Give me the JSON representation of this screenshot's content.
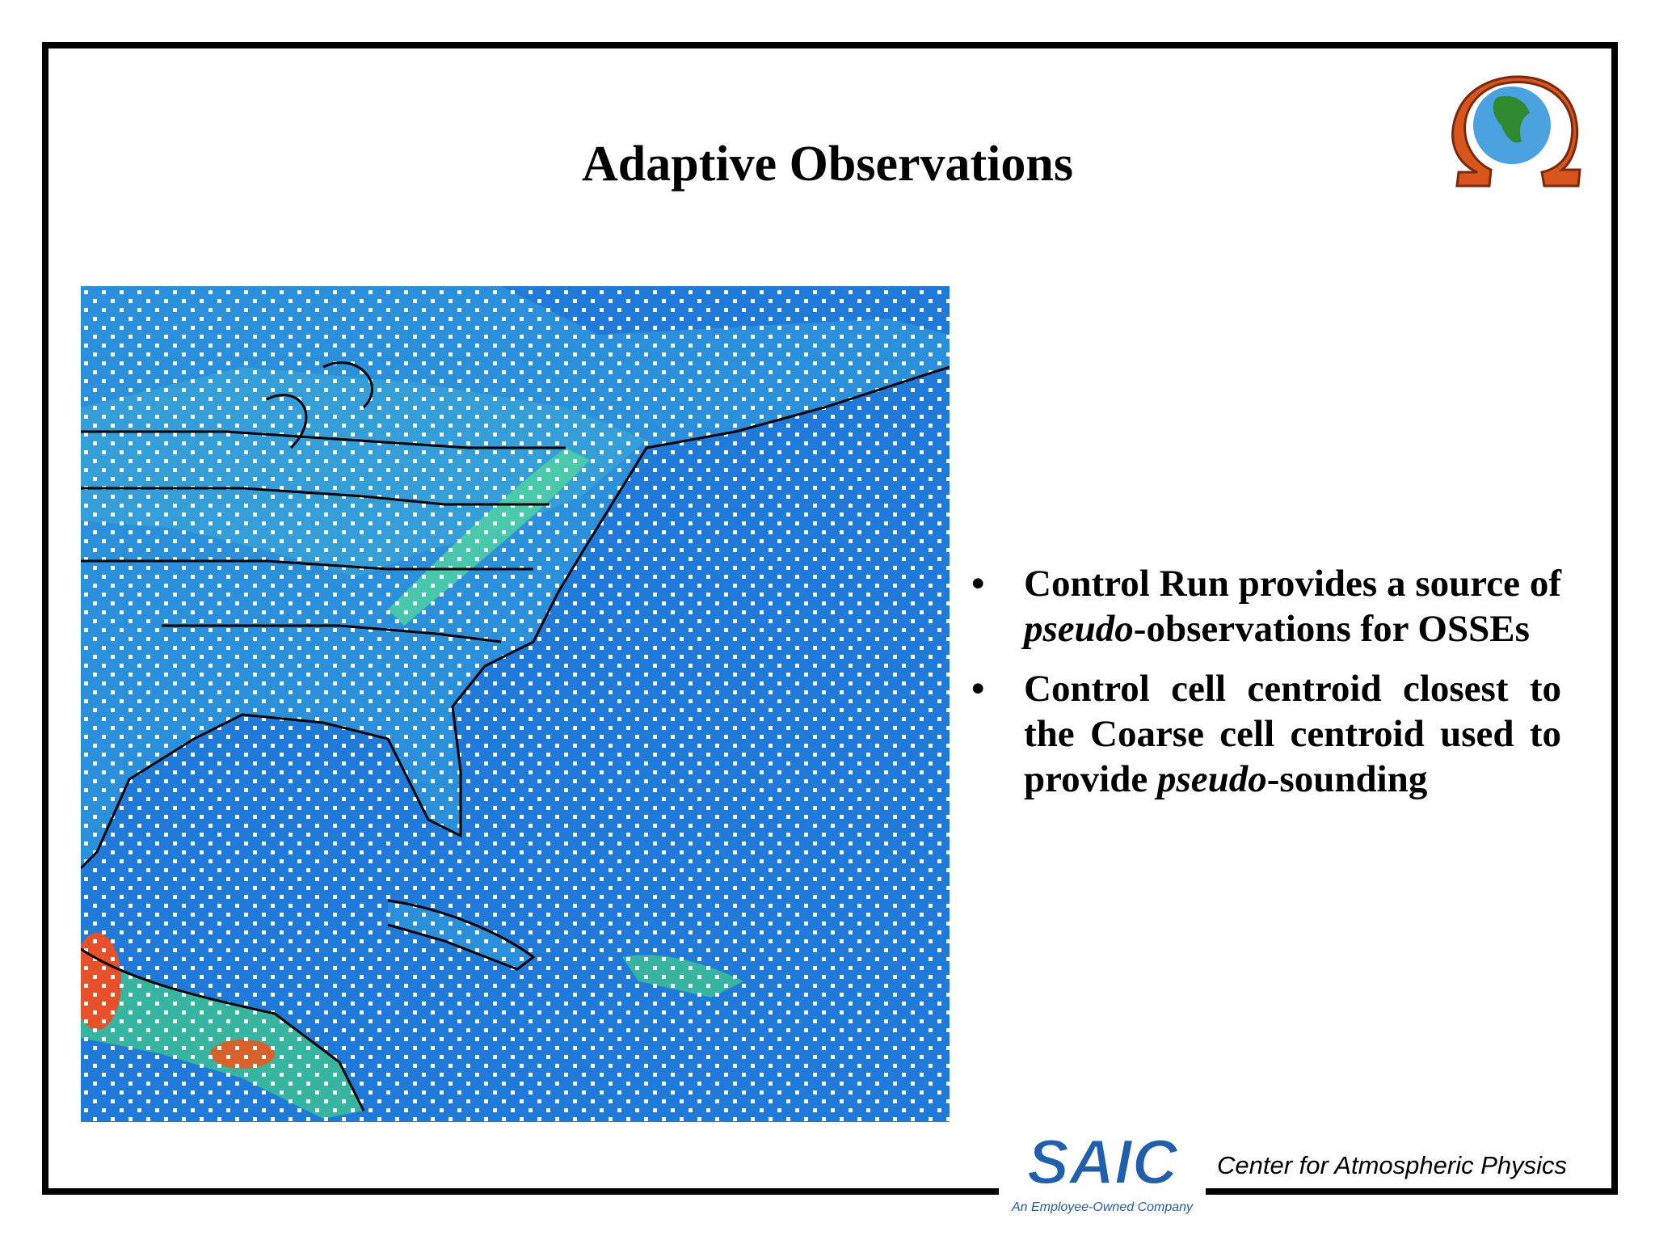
{
  "header": {
    "title": "Adaptive Observations"
  },
  "bullets": [
    [
      "Control Run provides a source of ",
      "pseudo",
      "-observations for OSSEs"
    ],
    [
      "Control cell centroid closest to the Coarse cell centroid used to provide ",
      "pseudo",
      "-sounding"
    ]
  ],
  "footer": {
    "logo": "SAIC",
    "tagline": "An Employee-Owned Company",
    "text": "Center for Atmospheric Physics"
  }
}
